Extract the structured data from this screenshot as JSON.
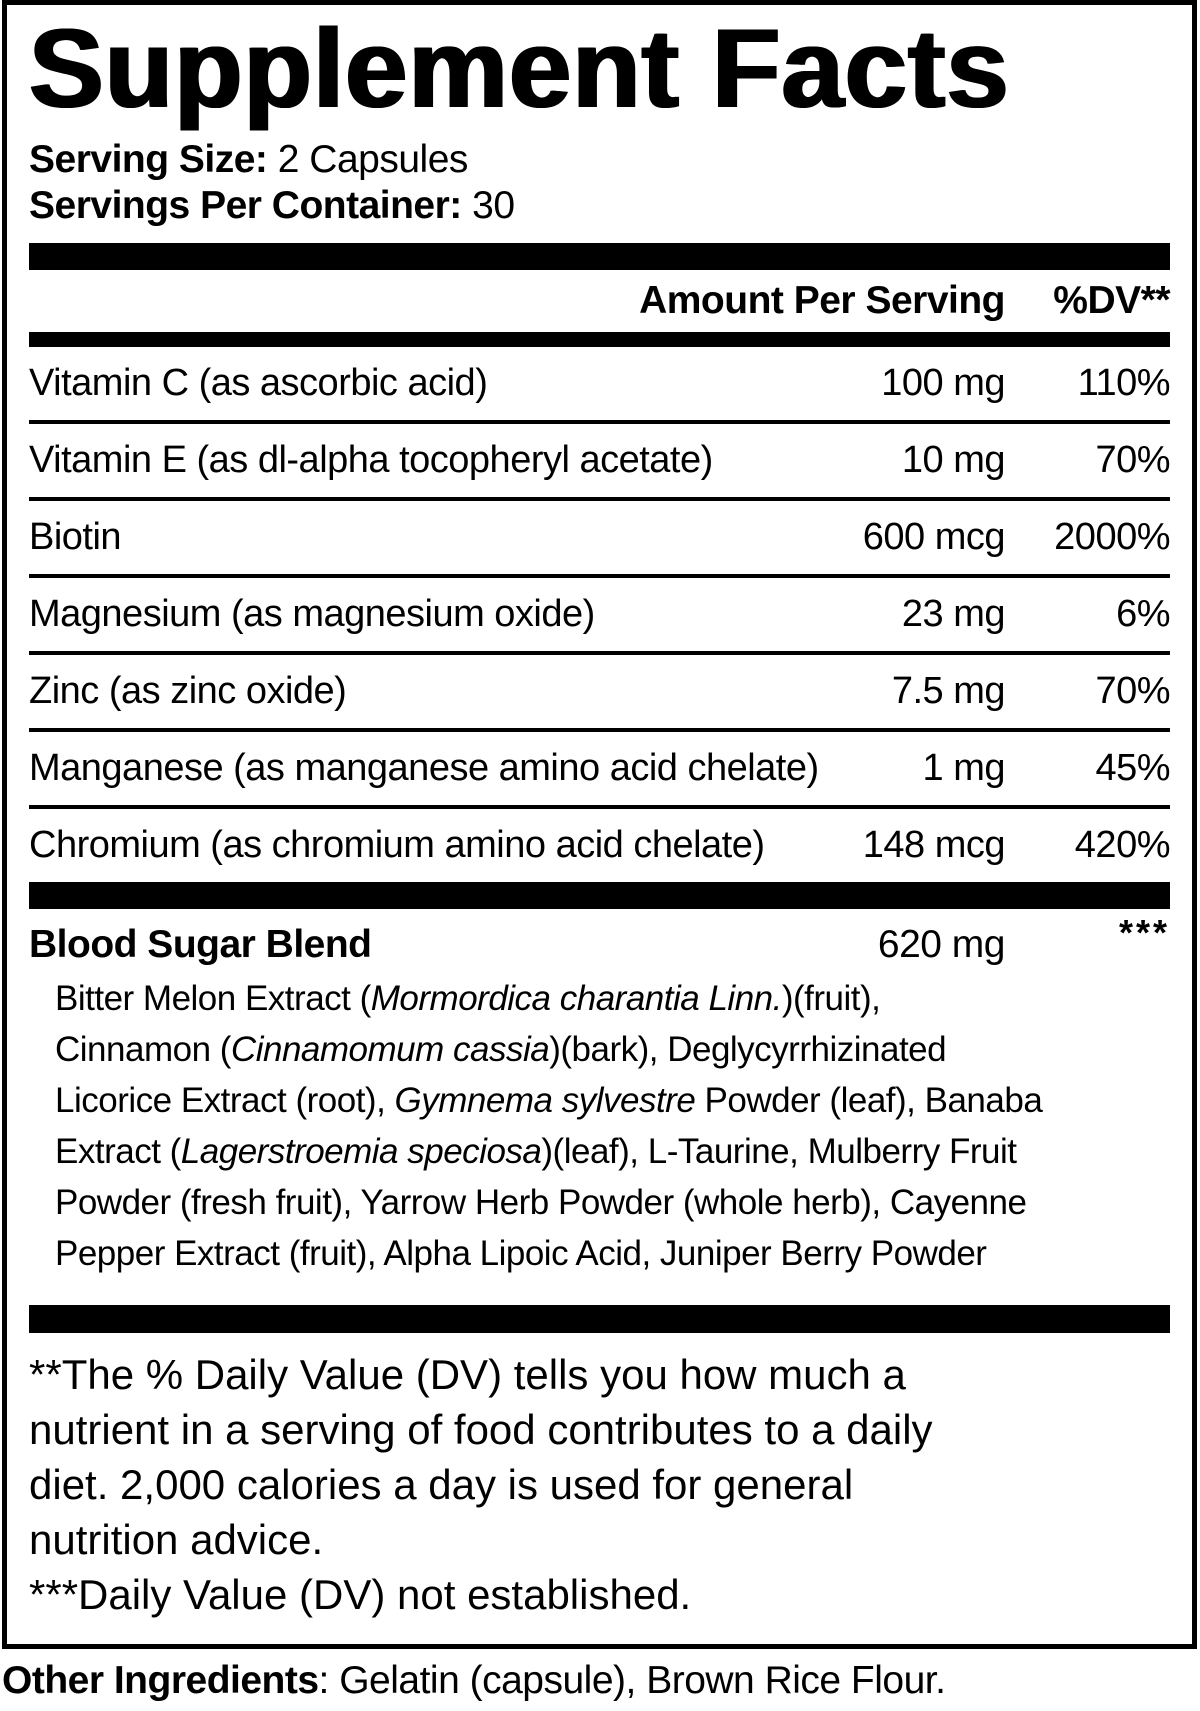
{
  "colors": {
    "text": "#000000",
    "background": "#ffffff"
  },
  "title": "Supplement Facts",
  "serving": {
    "size_label": "Serving Size:",
    "size_value": "2 Capsules",
    "container_label": "Servings Per Container:",
    "container_value": "30"
  },
  "table": {
    "header": {
      "amount": "Amount Per Serving",
      "dv": "%DV**"
    },
    "rows": [
      {
        "name": "Vitamin C (as ascorbic acid)",
        "amount": "100 mg",
        "dv": "110%"
      },
      {
        "name": "Vitamin E (as dl-alpha tocopheryl acetate)",
        "amount": "10 mg",
        "dv": "70%"
      },
      {
        "name": "Biotin",
        "amount": "600 mcg",
        "dv": "2000%"
      },
      {
        "name": "Magnesium (as magnesium oxide)",
        "amount": "23 mg",
        "dv": "6%"
      },
      {
        "name": "Zinc (as zinc oxide)",
        "amount": "7.5 mg",
        "dv": "70%"
      },
      {
        "name": "Manganese (as manganese amino acid chelate)",
        "amount": "1 mg",
        "dv": "45%"
      },
      {
        "name": "Chromium (as chromium amino acid chelate)",
        "amount": "148 mcg",
        "dv": "420%"
      }
    ]
  },
  "blend": {
    "name": "Blood Sugar Blend",
    "amount": "620 mg",
    "dv": "***",
    "description_lines": [
      [
        {
          "t": "Bitter Melon Extract (",
          "i": false
        },
        {
          "t": "Mormordica charantia Linn.",
          "i": true
        },
        {
          "t": ")(fruit),",
          "i": false
        }
      ],
      [
        {
          "t": "Cinnamon (",
          "i": false
        },
        {
          "t": "Cinnamomum cassia",
          "i": true
        },
        {
          "t": ")(bark), Deglycyrrhizinated",
          "i": false
        }
      ],
      [
        {
          "t": "Licorice Extract (root), ",
          "i": false
        },
        {
          "t": "Gymnema sylvestre",
          "i": true
        },
        {
          "t": " Powder (leaf), Banaba",
          "i": false
        }
      ],
      [
        {
          "t": "Extract (",
          "i": false
        },
        {
          "t": "Lagerstroemia speciosa",
          "i": true
        },
        {
          "t": ")(leaf), L-Taurine, Mulberry Fruit",
          "i": false
        }
      ],
      [
        {
          "t": "Powder (fresh fruit), Yarrow Herb Powder (whole herb), Cayenne",
          "i": false
        }
      ],
      [
        {
          "t": "Pepper Extract (fruit), Alpha Lipoic Acid, Juniper Berry Powder",
          "i": false
        }
      ]
    ]
  },
  "footnotes": {
    "lines": [
      "**The % Daily Value (DV) tells you how much a",
      "nutrient in a serving of food contributes to a daily",
      "diet. 2,000 calories a day is used for general",
      "nutrition advice.",
      "***Daily Value (DV) not established."
    ]
  },
  "other_ingredients": {
    "label": "Other Ingredients",
    "value": ": Gelatin (capsule), Brown Rice Flour."
  }
}
